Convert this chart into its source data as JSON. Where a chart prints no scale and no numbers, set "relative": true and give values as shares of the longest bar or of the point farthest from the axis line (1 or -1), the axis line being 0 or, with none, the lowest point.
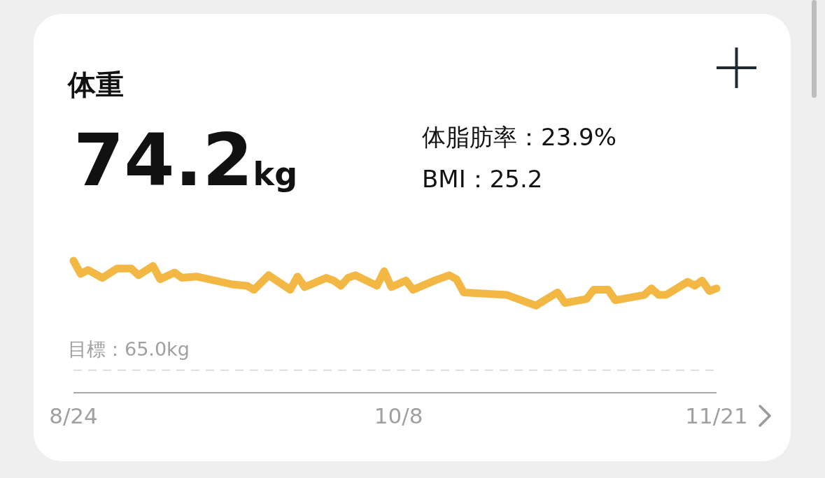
{
  "chart_data": {
    "type": "line",
    "title": "体重",
    "relative": true,
    "annotations": [
      "74.2kg",
      "体脂肪率：23.9%",
      "BMI：25.2"
    ],
    "x": [
      "--08-24",
      "--08-25",
      "--08-26",
      "--08-28",
      "--08-30",
      "--09-01",
      "--09-02",
      "--09-04",
      "--09-05",
      "--09-07",
      "--09-08",
      "--09-10",
      "--09-15",
      "--09-17",
      "--09-18",
      "--09-20",
      "--09-23",
      "--09-24",
      "--09-25",
      "--09-28",
      "--09-29",
      "--09-30",
      "--10-01",
      "--10-02",
      "--10-05",
      "--10-06",
      "--10-07",
      "--10-09",
      "--10-10",
      "--10-13",
      "--10-15",
      "--10-16",
      "--10-17",
      "--10-23",
      "--10-27",
      "--10-30",
      "--10-31",
      "--11-03",
      "--11-04",
      "--11-06",
      "--11-07",
      "--11-11",
      "--11-12",
      "--11-13",
      "--11-14",
      "--11-17",
      "--11-18",
      "--11-19",
      "--11-20",
      "--11-21"
    ],
    "series": [
      {
        "color": "#f2b843",
        "values": [
          1,
          0.9,
          0.93,
          0.87,
          0.94,
          0.94,
          0.89,
          0.96,
          0.86,
          0.91,
          0.87,
          0.88,
          0.82,
          0.81,
          0.78,
          0.89,
          0.78,
          0.88,
          0.8,
          0.87,
          0.85,
          0.81,
          0.87,
          0.89,
          0.81,
          0.92,
          0.8,
          0.85,
          0.78,
          0.85,
          0.89,
          0.86,
          0.76,
          0.74,
          0.66,
          0.76,
          0.68,
          0.71,
          0.78,
          0.78,
          0.7,
          0.74,
          0.79,
          0.74,
          0.74,
          0.84,
          0.81,
          0.85,
          0.77,
          0.79
        ]
      }
    ],
    "xlim": [
      "--08-24",
      "--11-21"
    ],
    "xticks": [
      {
        "value": "--08-24",
        "label": "8/24"
      },
      {
        "value": "--10-08",
        "label": "10/8"
      },
      {
        "value": "--11-21",
        "label": "11/21"
      }
    ],
    "ref_lines": [
      {
        "axis": "y",
        "value": 0.17,
        "label": "目標：65.0kg",
        "color": "#dddddd",
        "line_style": "dashed"
      }
    ]
  }
}
